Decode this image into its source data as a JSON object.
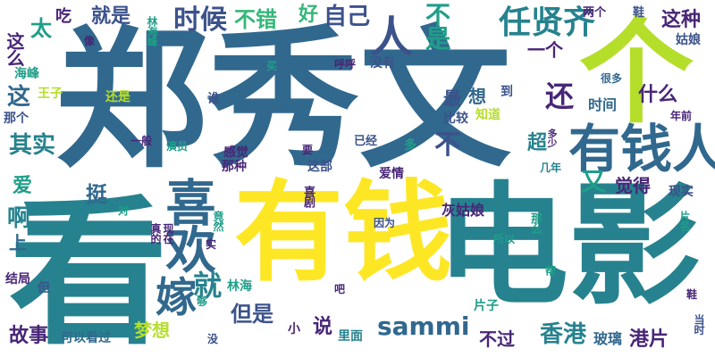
{
  "palette": {
    "dark_purple": "#482677",
    "indigo": "#3b528b",
    "teal_blue": "#31688e",
    "teal": "#26828e",
    "green_teal": "#1f9e89",
    "green": "#35b779",
    "light_green": "#6ece58",
    "lime": "#b5de2b",
    "yellow": "#fde725"
  },
  "words": [
    {
      "text": "郑秀文",
      "color": "teal_blue",
      "orientation": "horizontal"
    },
    {
      "text": "看",
      "color": "teal",
      "orientation": "horizontal"
    },
    {
      "text": "有钱",
      "color": "yellow",
      "orientation": "horizontal"
    },
    {
      "text": "电影",
      "color": "teal",
      "orientation": "horizontal"
    },
    {
      "text": "个",
      "color": "lime",
      "orientation": "horizontal"
    },
    {
      "text": "有钱人",
      "color": "teal_blue",
      "orientation": "horizontal"
    },
    {
      "text": "喜欢",
      "color": "teal_blue",
      "orientation": "vertical"
    },
    {
      "text": "任贤齐",
      "color": "teal",
      "orientation": "horizontal"
    },
    {
      "text": "嫁",
      "color": "teal_blue",
      "orientation": "horizontal"
    },
    {
      "text": "时候",
      "color": "indigo",
      "orientation": "horizontal"
    },
    {
      "text": "不错",
      "color": "green",
      "orientation": "horizontal"
    },
    {
      "text": "自己",
      "color": "indigo",
      "orientation": "horizontal"
    },
    {
      "text": "人",
      "color": "indigo",
      "orientation": "horizontal"
    },
    {
      "text": "不是",
      "color": "green_teal",
      "orientation": "vertical"
    },
    {
      "text": "好",
      "color": "green",
      "orientation": "horizontal"
    },
    {
      "text": "就是",
      "color": "indigo",
      "orientation": "horizontal"
    },
    {
      "text": "吃",
      "color": "dark_purple",
      "orientation": "horizontal"
    },
    {
      "text": "太",
      "color": "green_teal",
      "orientation": "horizontal"
    },
    {
      "text": "这么",
      "color": "dark_purple",
      "orientation": "vertical"
    },
    {
      "text": "这种",
      "color": "dark_purple",
      "orientation": "horizontal"
    },
    {
      "text": "姑娘",
      "color": "indigo",
      "orientation": "horizontal"
    },
    {
      "text": "一个",
      "color": "dark_purple",
      "orientation": "horizontal"
    },
    {
      "text": "两个",
      "color": "dark_purple",
      "orientation": "horizontal"
    },
    {
      "text": "鞋",
      "color": "indigo",
      "orientation": "horizontal"
    },
    {
      "text": "海峰",
      "color": "green_teal",
      "orientation": "horizontal"
    },
    {
      "text": "林海峰",
      "color": "green_teal",
      "orientation": "vertical"
    },
    {
      "text": "像",
      "color": "dark_purple",
      "orientation": "horizontal"
    },
    {
      "text": "买",
      "color": "green_teal",
      "orientation": "horizontal"
    },
    {
      "text": "呼呼",
      "color": "dark_purple",
      "orientation": "horizontal"
    },
    {
      "text": "没有",
      "color": "indigo",
      "orientation": "horizontal"
    },
    {
      "text": "这",
      "color": "teal_blue",
      "orientation": "horizontal"
    },
    {
      "text": "那个",
      "color": "indigo",
      "orientation": "horizontal"
    },
    {
      "text": "王子",
      "color": "lime",
      "orientation": "horizontal"
    },
    {
      "text": "还是",
      "color": "lime",
      "orientation": "horizontal"
    },
    {
      "text": "谁",
      "color": "indigo",
      "orientation": "horizontal"
    },
    {
      "text": "想",
      "color": "teal_blue",
      "orientation": "horizontal"
    },
    {
      "text": "到",
      "color": "indigo",
      "orientation": "horizontal"
    },
    {
      "text": "最",
      "color": "indigo",
      "orientation": "horizontal"
    },
    {
      "text": "比较",
      "color": "indigo",
      "orientation": "horizontal"
    },
    {
      "text": "知道",
      "color": "lime",
      "orientation": "horizontal"
    },
    {
      "text": "还",
      "color": "dark_purple",
      "orientation": "horizontal"
    },
    {
      "text": "什么",
      "color": "dark_purple",
      "orientation": "horizontal"
    },
    {
      "text": "时间",
      "color": "teal_blue",
      "orientation": "horizontal"
    },
    {
      "text": "很多",
      "color": "teal_blue",
      "orientation": "horizontal"
    },
    {
      "text": "年前",
      "color": "dark_purple",
      "orientation": "horizontal"
    },
    {
      "text": "其实",
      "color": "teal",
      "orientation": "horizontal"
    },
    {
      "text": "一般",
      "color": "dark_purple",
      "orientation": "horizontal"
    },
    {
      "text": "演员",
      "color": "green_teal",
      "orientation": "horizontal"
    },
    {
      "text": "要",
      "color": "dark_purple",
      "orientation": "horizontal"
    },
    {
      "text": "已经",
      "color": "indigo",
      "orientation": "horizontal"
    },
    {
      "text": "多",
      "color": "green_teal",
      "orientation": "horizontal"
    },
    {
      "text": "多少",
      "color": "dark_purple",
      "orientation": "vertical"
    },
    {
      "text": "不",
      "color": "indigo",
      "orientation": "horizontal"
    },
    {
      "text": "超",
      "color": "teal",
      "orientation": "horizontal"
    },
    {
      "text": "几年",
      "color": "teal",
      "orientation": "horizontal"
    },
    {
      "text": "感觉",
      "color": "dark_purple",
      "orientation": "horizontal"
    },
    {
      "text": "那种",
      "color": "dark_purple",
      "orientation": "horizontal"
    },
    {
      "text": "这部",
      "color": "indigo",
      "orientation": "horizontal"
    },
    {
      "text": "爱情",
      "color": "dark_purple",
      "orientation": "horizontal"
    },
    {
      "text": "又",
      "color": "green_teal",
      "orientation": "horizontal"
    },
    {
      "text": "觉得",
      "color": "dark_purple",
      "orientation": "horizontal"
    },
    {
      "text": "现实",
      "color": "indigo",
      "orientation": "horizontal"
    },
    {
      "text": "爱",
      "color": "green_teal",
      "orientation": "horizontal"
    },
    {
      "text": "挺",
      "color": "teal_blue",
      "orientation": "horizontal"
    },
    {
      "text": "对",
      "color": "green_teal",
      "orientation": "horizontal"
    },
    {
      "text": "喜剧",
      "color": "dark_purple",
      "orientation": "vertical"
    },
    {
      "text": "啊",
      "color": "teal",
      "orientation": "horizontal"
    },
    {
      "text": "真的",
      "color": "dark_purple",
      "orientation": "horizontal"
    },
    {
      "text": "现在",
      "color": "dark_purple",
      "orientation": "horizontal"
    },
    {
      "text": "竟然",
      "color": "green_teal",
      "orientation": "vertical"
    },
    {
      "text": "灰姑娘",
      "color": "dark_purple",
      "orientation": "horizontal"
    },
    {
      "text": "因为",
      "color": "indigo",
      "orientation": "horizontal"
    },
    {
      "text": "那么",
      "color": "green_teal",
      "orientation": "vertical"
    },
    {
      "text": "片名",
      "color": "green_teal",
      "orientation": "vertical"
    },
    {
      "text": "上",
      "color": "teal_blue",
      "orientation": "horizontal"
    },
    {
      "text": "就",
      "color": "teal",
      "orientation": "horizontal"
    },
    {
      "text": "所以",
      "color": "green_teal",
      "orientation": "horizontal"
    },
    {
      "text": "实",
      "color": "dark_purple",
      "orientation": "horizontal"
    },
    {
      "text": "结局",
      "color": "dark_purple",
      "orientation": "horizontal"
    },
    {
      "text": "但",
      "color": "indigo",
      "orientation": "horizontal"
    },
    {
      "text": "林海",
      "color": "green_teal",
      "orientation": "horizontal"
    },
    {
      "text": "吧",
      "color": "dark_purple",
      "orientation": "horizontal"
    },
    {
      "text": "片子",
      "color": "green_teal",
      "orientation": "horizontal"
    },
    {
      "text": "但是",
      "color": "indigo",
      "orientation": "horizontal"
    },
    {
      "text": "说",
      "color": "dark_purple",
      "orientation": "horizontal"
    },
    {
      "text": "sammi",
      "color": "teal_blue",
      "orientation": "horizontal"
    },
    {
      "text": "香港",
      "color": "teal",
      "orientation": "horizontal"
    },
    {
      "text": "港片",
      "color": "dark_purple",
      "orientation": "horizontal"
    },
    {
      "text": "故事",
      "color": "dark_purple",
      "orientation": "horizontal"
    },
    {
      "text": "梦想",
      "color": "lime",
      "orientation": "horizontal"
    },
    {
      "text": "可以看过",
      "color": "teal_blue",
      "orientation": "horizontal"
    },
    {
      "text": "小",
      "color": "dark_purple",
      "orientation": "horizontal"
    },
    {
      "text": "没",
      "color": "indigo",
      "orientation": "horizontal"
    },
    {
      "text": "里面",
      "color": "teal",
      "orientation": "horizontal"
    },
    {
      "text": "不过",
      "color": "dark_purple",
      "orientation": "horizontal"
    },
    {
      "text": "玻璃",
      "color": "teal_blue",
      "orientation": "horizontal"
    },
    {
      "text": "当时",
      "color": "indigo",
      "orientation": "vertical"
    },
    {
      "text": "鞋",
      "color": "dark_purple",
      "orientation": "horizontal"
    },
    {
      "text": "帮",
      "color": "green_teal",
      "orientation": "horizontal"
    },
    {
      "text": "够",
      "color": "green_teal",
      "orientation": "horizontal"
    }
  ]
}
